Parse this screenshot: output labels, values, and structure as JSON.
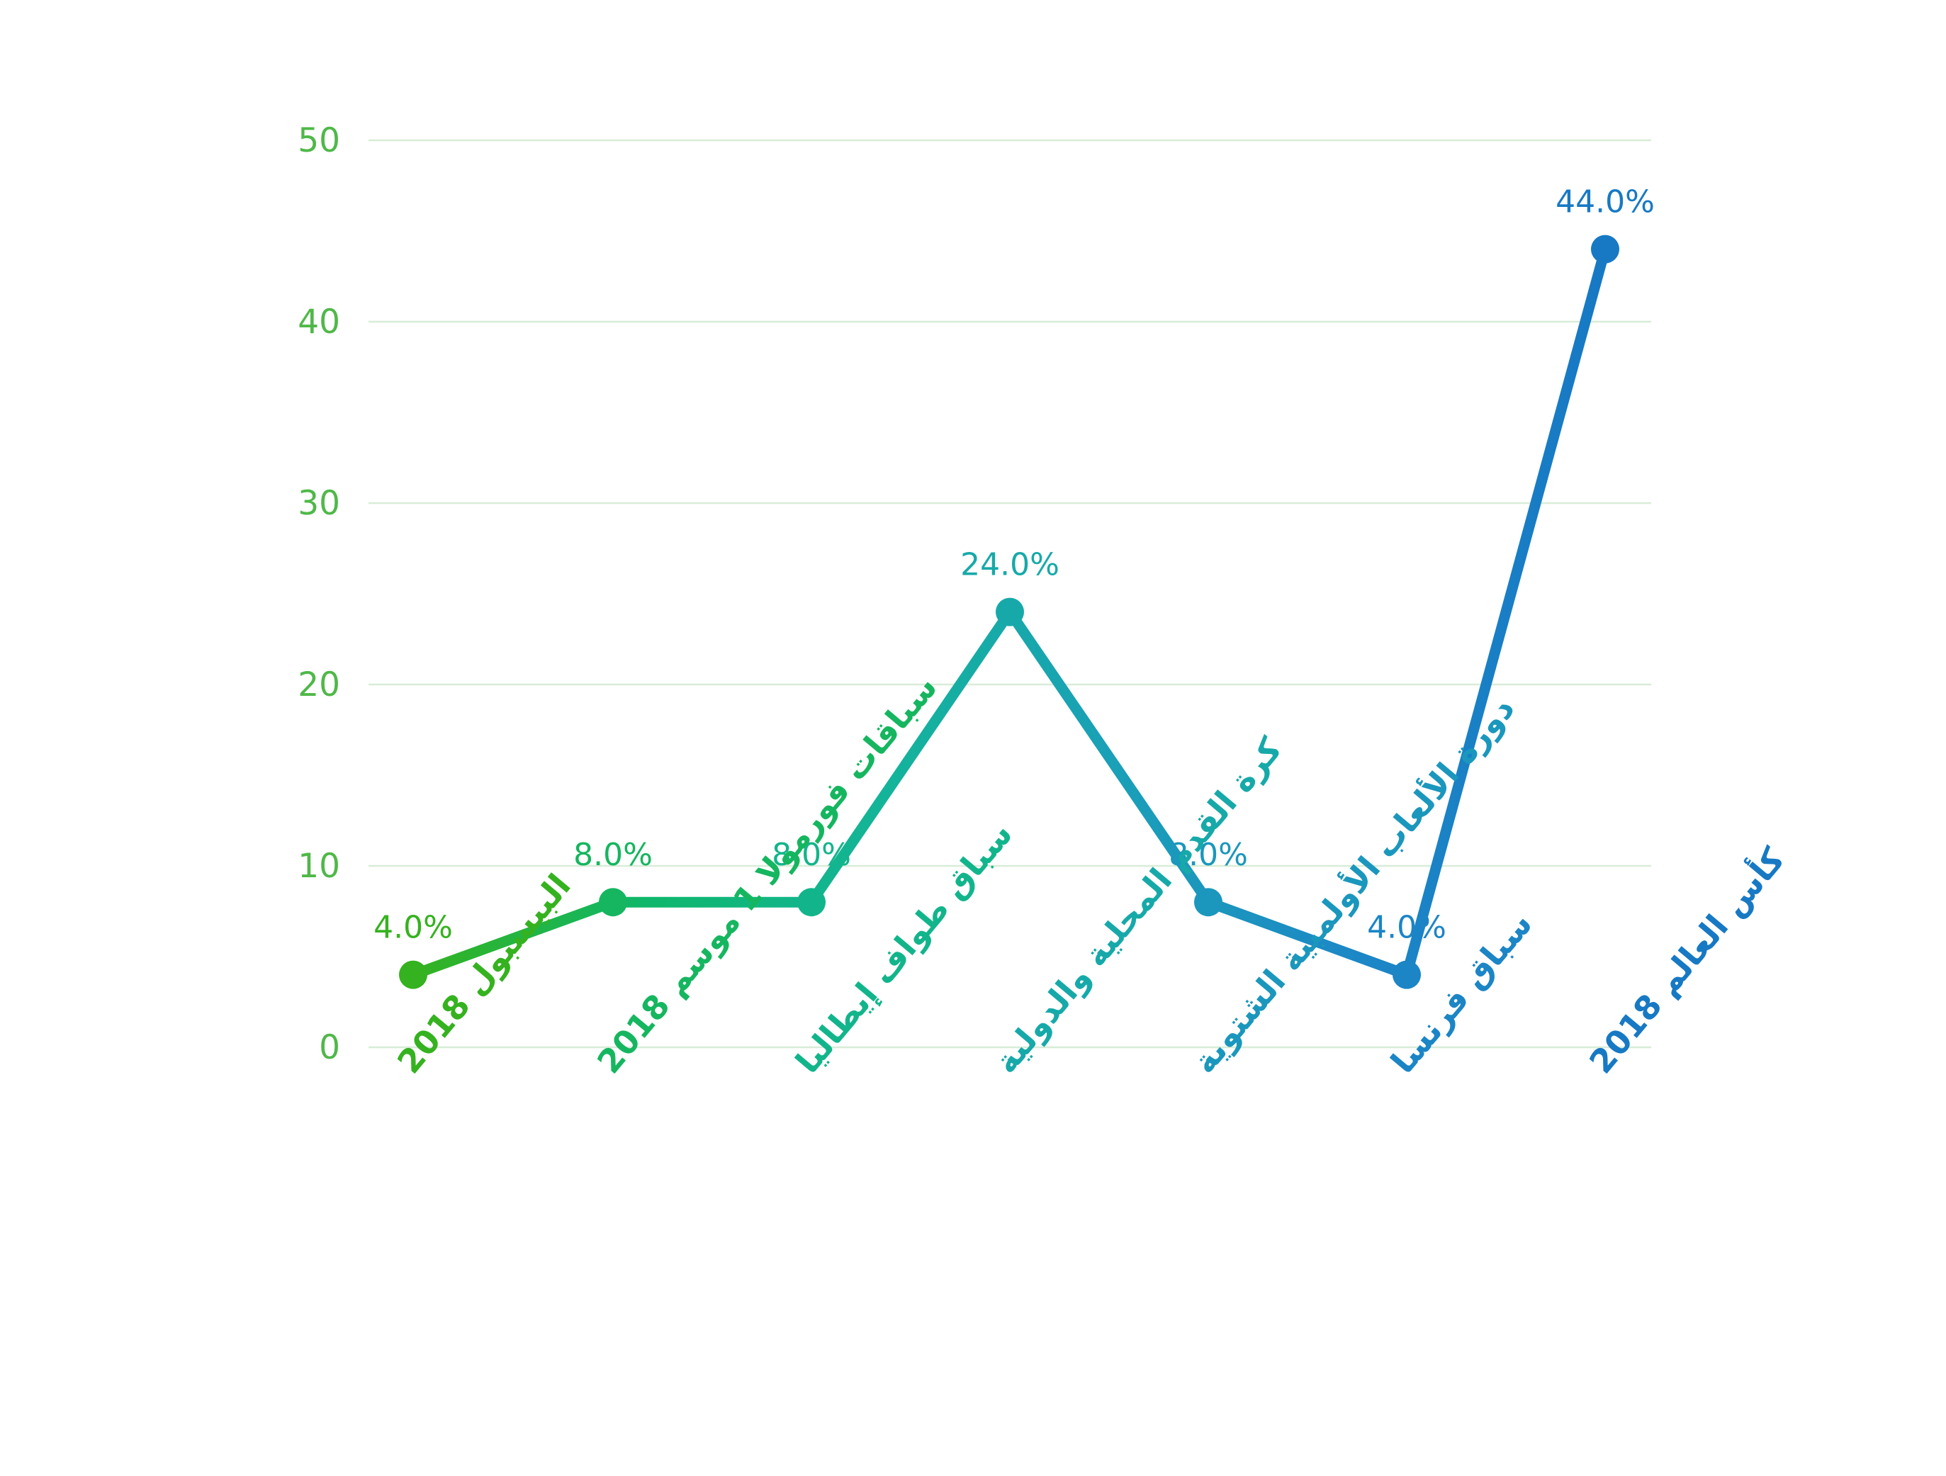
{
  "chart_data": {
    "type": "line",
    "categories": [
      "البيسبول 2018",
      "سباقات فورمولا 1 موسم 2018",
      "سباق طواف إيطاليا",
      "كرة القدم المحلية والدولية",
      "دورة الألعاب الأولمبية الشتوية",
      "سباق فرنسا",
      "كأس العالم 2018"
    ],
    "values": [
      4.0,
      8.0,
      8.0,
      24.0,
      8.0,
      4.0,
      44.0
    ],
    "data_labels": [
      "4.0%",
      "8.0%",
      "8.0%",
      "24.0%",
      "8.0%",
      "4.0%",
      "44.0%"
    ],
    "y_ticks": [
      "0",
      "10",
      "20",
      "30",
      "40",
      "50"
    ],
    "ylim": [
      0,
      50
    ],
    "grid": true,
    "title": "",
    "xlabel": "",
    "ylabel": "",
    "colors": {
      "gradient": [
        "#35b21f",
        "#0fb76b",
        "#14b49a",
        "#1a9fb8",
        "#1c87c6",
        "#1779c4"
      ],
      "grid": "#d8ecd8",
      "tick": "#4fb848"
    }
  }
}
